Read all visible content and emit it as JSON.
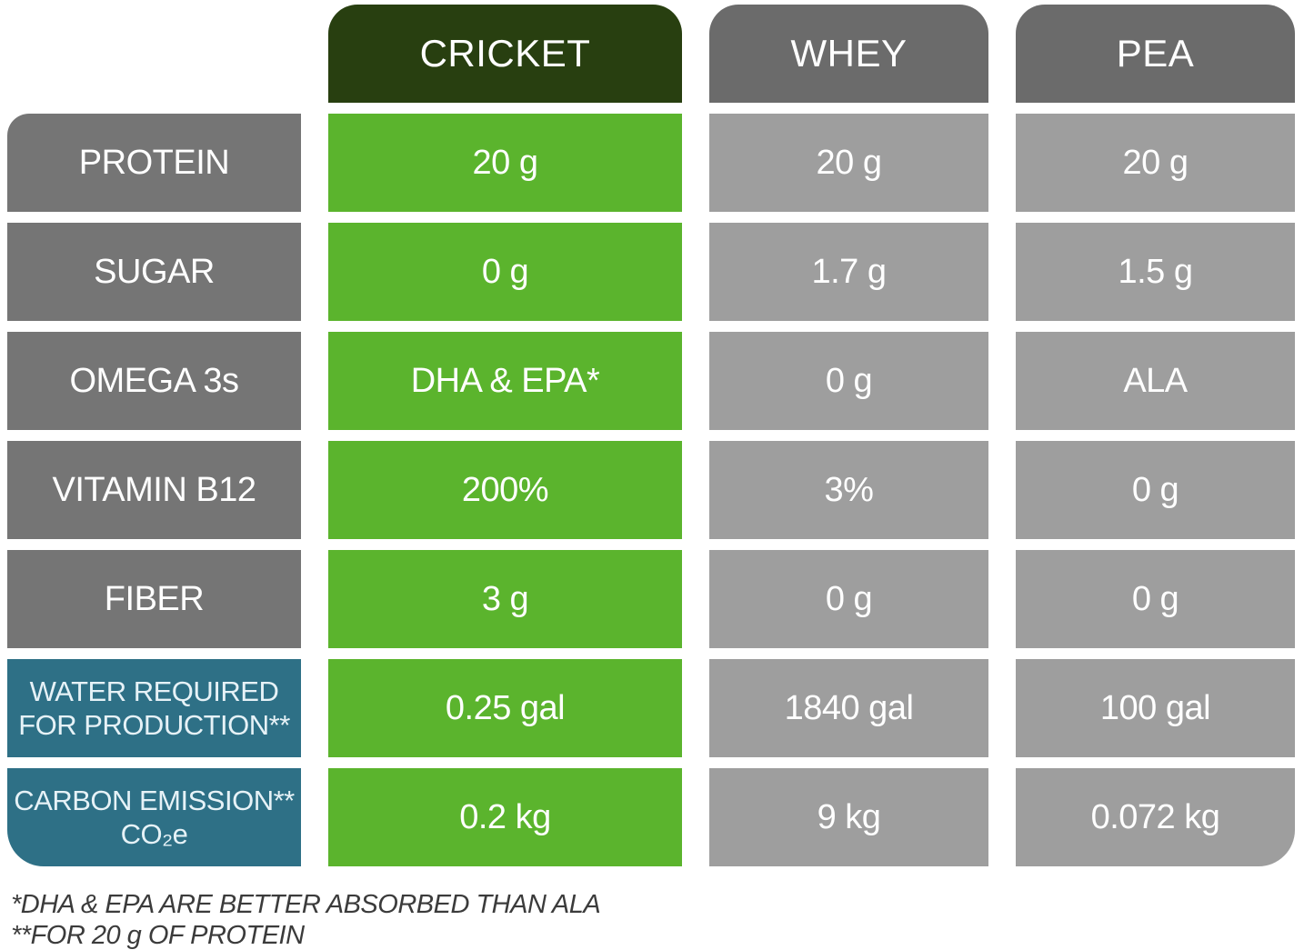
{
  "colors": {
    "header_green": "#283f10",
    "cell_green": "#5bb42d",
    "header_gray": "#6b6b6b",
    "label_gray": "#757575",
    "cell_gray": "#9e9e9e",
    "label_teal": "#2e7086",
    "text_white": "#ffffff",
    "teal_text": "#e6f2f7",
    "footnote_color": "#3b3b3b"
  },
  "columns": {
    "cricket": "CRICKET",
    "whey": "WHEY",
    "pea": "PEA"
  },
  "rows": [
    {
      "label": "PROTEIN",
      "cricket": "20 g",
      "whey": "20 g",
      "pea": "20 g"
    },
    {
      "label": "SUGAR",
      "cricket": "0 g",
      "whey": "1.7 g",
      "pea": "1.5 g"
    },
    {
      "label": "OMEGA 3s",
      "cricket": "DHA & EPA*",
      "whey": "0 g",
      "pea": "ALA"
    },
    {
      "label": "VITAMIN B12",
      "cricket": "200%",
      "whey": "3%",
      "pea": "0 g"
    },
    {
      "label": "FIBER",
      "cricket": "3 g",
      "whey": "0 g",
      "pea": "0 g"
    },
    {
      "label": "WATER REQUIRED FOR PRODUCTION**",
      "label_line1": "WATER REQUIRED",
      "label_line2": "FOR PRODUCTION**",
      "cricket": "0.25 gal",
      "whey": "1840 gal",
      "pea": "100 gal"
    },
    {
      "label": "CARBON EMISSION** CO₂e",
      "label_line1": "CARBON EMISSION**",
      "label_line2": "CO₂e",
      "cricket": "0.2 kg",
      "whey": "9 kg",
      "pea": "0.072 kg"
    }
  ],
  "footnotes": {
    "line1": "*DHA & EPA ARE BETTER ABSORBED THAN ALA",
    "line2": "**FOR 20 g OF PROTEIN"
  },
  "chart_data": {
    "type": "table",
    "title": "Cricket vs Whey vs Pea protein comparison",
    "columns": [
      "",
      "CRICKET",
      "WHEY",
      "PEA"
    ],
    "rows": [
      [
        "PROTEIN",
        "20 g",
        "20 g",
        "20 g"
      ],
      [
        "SUGAR",
        "0 g",
        "1.7 g",
        "1.5 g"
      ],
      [
        "OMEGA 3s",
        "DHA & EPA*",
        "0 g",
        "ALA"
      ],
      [
        "VITAMIN B12",
        "200%",
        "3%",
        "0 g"
      ],
      [
        "FIBER",
        "3 g",
        "0 g",
        "0 g"
      ],
      [
        "WATER REQUIRED FOR PRODUCTION**",
        "0.25 gal",
        "1840 gal",
        "100 gal"
      ],
      [
        "CARBON EMISSION** CO₂e",
        "0.2 kg",
        "9 kg",
        "0.072 kg"
      ]
    ],
    "footnotes": [
      "*DHA & EPA ARE BETTER ABSORBED THAN ALA",
      "**FOR 20 g OF PROTEIN"
    ]
  }
}
